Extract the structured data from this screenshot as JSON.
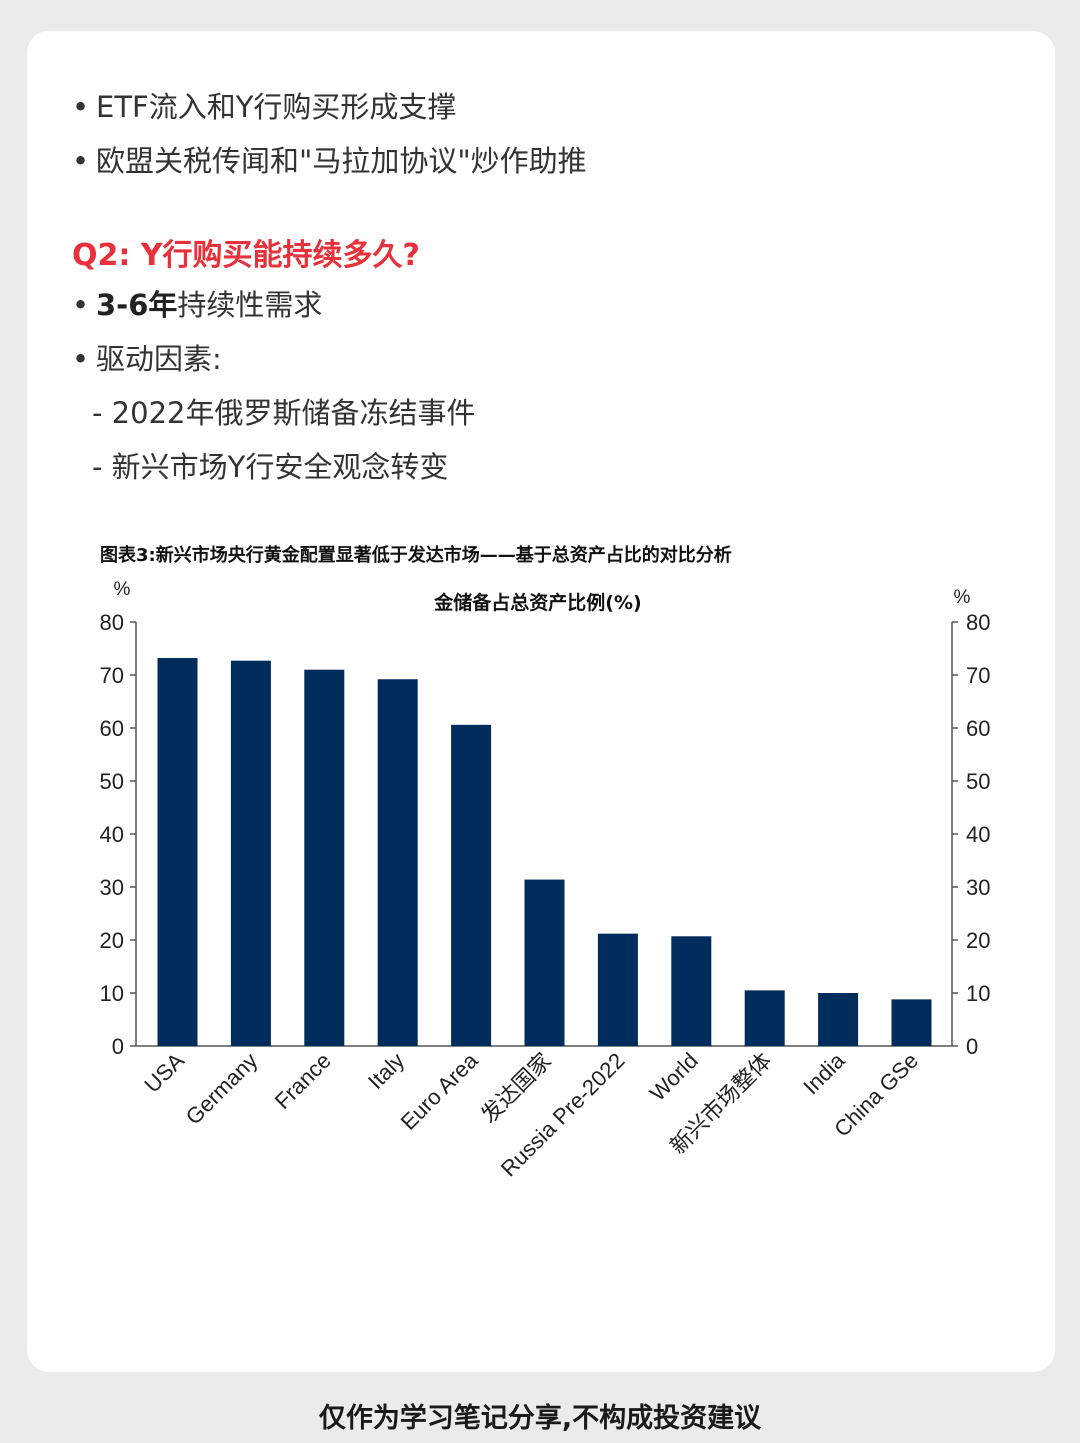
{
  "bullets_top": [
    "ETF流入和Y行购买形成支撑",
    "欧盟关税传闻和\"马拉加协议\"炒作助推"
  ],
  "q2_title": "Q2: Y行购买能持续多久?",
  "q2_b1_strong": "3-6年",
  "q2_b1_rest": "持续性需求",
  "q2_b2": "驱动因素:",
  "q2_sub": [
    "- 2022年俄罗斯储备冻结事件",
    "- 新兴市场Y行安全观念转变"
  ],
  "bullet_char": "•",
  "chart_data": {
    "type": "bar",
    "title": "图表3:新兴市场央行黄金配置显著低于发达市场——基于总资产占比的对比分析",
    "subtitle": "金储备占总资产比例(%)",
    "ylabel_left": "%",
    "ylabel_right": "%",
    "categories": [
      "USA",
      "Germany",
      "France",
      "Italy",
      "Euro Area",
      "发达国家",
      "Russia Pre-2022",
      "World",
      "新兴市场整体",
      "India",
      "China GSe"
    ],
    "values": [
      73.2,
      72.7,
      71.0,
      69.2,
      60.6,
      31.4,
      21.2,
      20.7,
      10.5,
      10.0,
      8.8
    ],
    "ylim": [
      0,
      80
    ],
    "yticks": [
      0,
      10,
      20,
      30,
      40,
      50,
      60,
      70,
      80
    ],
    "bar_color": "#002d5c",
    "grid": false,
    "legend": "none"
  },
  "footer": "仅作为学习笔记分享,不构成投资建议"
}
